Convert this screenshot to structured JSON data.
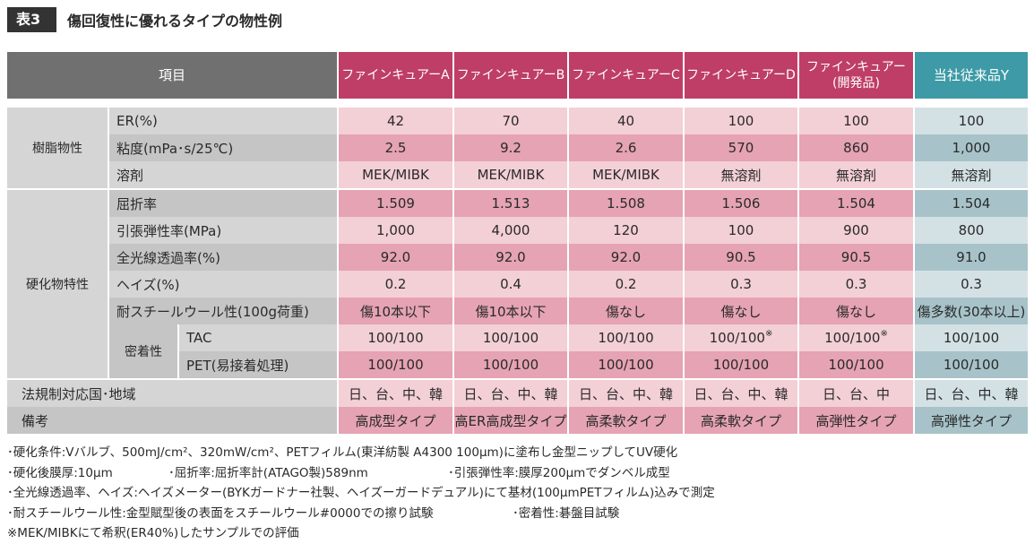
{
  "heading": {
    "tag": "表3",
    "title": "傷回復性に優れるタイプの物性例"
  },
  "table": {
    "header_item": "項目",
    "columns": [
      {
        "label": "ファインキュアーA"
      },
      {
        "label": "ファインキュアーB"
      },
      {
        "label": "ファインキュアーC"
      },
      {
        "label": "ファインキュアーD"
      },
      {
        "label": "ファインキュアー\n(開発品)"
      },
      {
        "label": "当社従来品Y"
      }
    ],
    "groups": {
      "resin": "樹脂物性",
      "cured": "硬化物特性",
      "adhesion": "密着性"
    },
    "rows": [
      {
        "label": "ER(%)",
        "values": [
          "42",
          "70",
          "40",
          "100",
          "100",
          "100"
        ]
      },
      {
        "label": "粘度(mPa･s/25℃)",
        "values": [
          "2.5",
          "9.2",
          "2.6",
          "570",
          "860",
          "1,000"
        ]
      },
      {
        "label": "溶剤",
        "values": [
          "MEK/MIBK",
          "MEK/MIBK",
          "MEK/MIBK",
          "無溶剤",
          "無溶剤",
          "無溶剤"
        ]
      },
      {
        "label": "屈折率",
        "values": [
          "1.509",
          "1.513",
          "1.508",
          "1.506",
          "1.504",
          "1.504"
        ]
      },
      {
        "label": "引張弾性率(MPa)",
        "values": [
          "1,000",
          "4,000",
          "120",
          "100",
          "900",
          "800"
        ]
      },
      {
        "label": "全光線透過率(%)",
        "values": [
          "92.0",
          "92.0",
          "92.0",
          "90.5",
          "90.5",
          "91.0"
        ]
      },
      {
        "label": "ヘイズ(%)",
        "values": [
          "0.2",
          "0.4",
          "0.2",
          "0.3",
          "0.3",
          "0.3"
        ]
      },
      {
        "label": "耐スチールウール性(100g荷重)",
        "values": [
          "傷10本以下",
          "傷10本以下",
          "傷なし",
          "傷なし",
          "傷なし",
          "傷多数(30本以上)"
        ]
      },
      {
        "label": "TAC",
        "values": [
          "100/100",
          "100/100",
          "100/100",
          "100/100",
          "100/100",
          "100/100"
        ],
        "marks": [
          "",
          "",
          "",
          "※",
          "※",
          ""
        ]
      },
      {
        "label": "PET(易接着処理)",
        "values": [
          "100/100",
          "100/100",
          "100/100",
          "100/100",
          "100/100",
          "100/100"
        ]
      },
      {
        "label": "法規制対応国･地域",
        "values": [
          "日、台、中、韓",
          "日、台、中、韓",
          "日、台、中、韓",
          "日、台、中、韓",
          "日、台、中",
          "日、台、中、韓"
        ]
      },
      {
        "label": "備考",
        "values": [
          "高成型タイプ",
          "高ER高成型タイプ",
          "高柔軟タイプ",
          "高柔軟タイプ",
          "高弾性タイプ",
          "高弾性タイプ"
        ]
      }
    ]
  },
  "notes": {
    "line1": "･硬化条件:Vバルブ、500mJ/cm²、320mW/cm²、PETフィルム(東洋紡製 A4300 100μm)に塗布し金型ニップしてUV硬化",
    "line2a": "･硬化後膜厚:10μm",
    "line2b": "･屈折率:屈折率計(ATAGO製)589nm",
    "line2c": "･引張弾性率:膜厚200μmでダンベル成型",
    "line3": "･全光線透過率、ヘイズ:ヘイズメーター(BYKガードナー社製、ヘイズーガードデュアル)にて基材(100μmPETフィルム)込みで測定",
    "line4a": "･耐スチールウール性:金型賦型後の表面をスチールウール#0000での擦り試験",
    "line4b": "･密着性:碁盤目試験",
    "line5": "※MEK/MIBKにて希釈(ER40%)したサンプルでの評価"
  }
}
